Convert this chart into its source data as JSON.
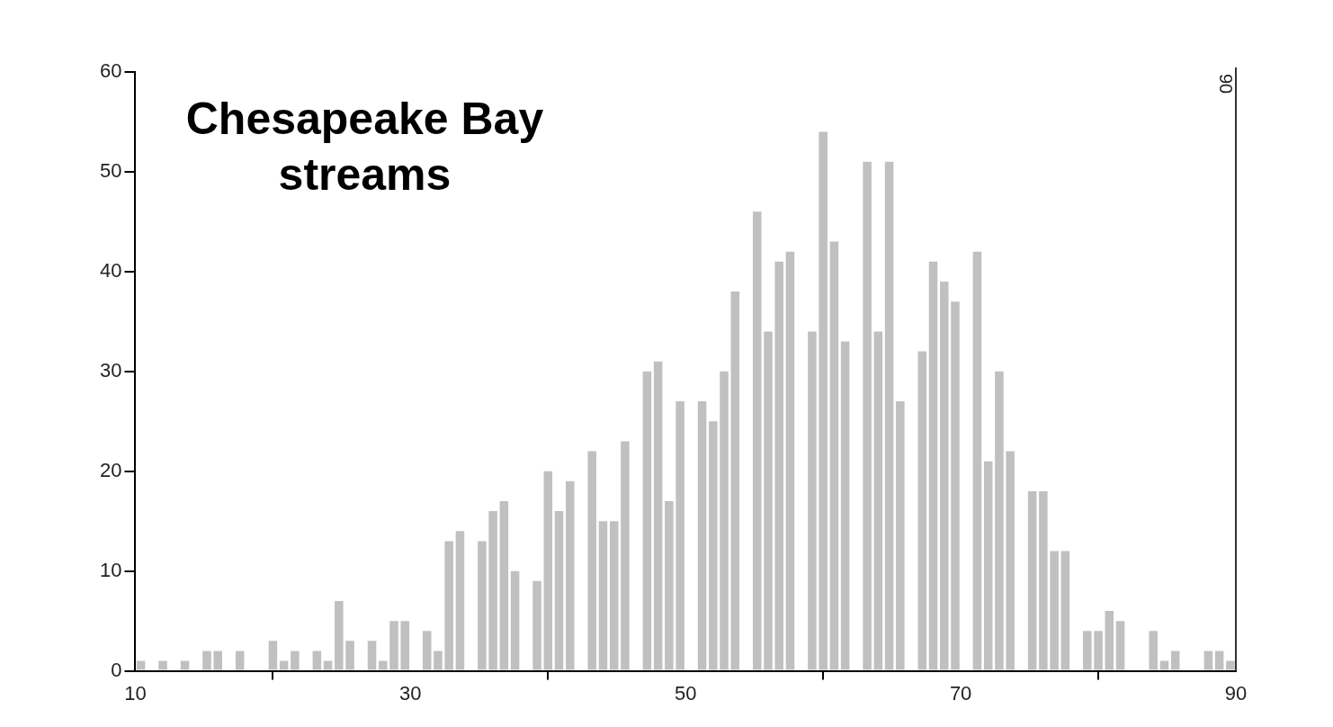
{
  "chart_data": {
    "type": "histogram",
    "title": "Chesapeake Bay streams",
    "bins": [
      10,
      10.8,
      11.6,
      12.4,
      13.2,
      14,
      14.8,
      15.6,
      16.4,
      17.2,
      18,
      18.8,
      19.6,
      20.4,
      21.2,
      22,
      22.8,
      23.6,
      24.4,
      25.2,
      26,
      26.8,
      27.6,
      28.4,
      29.2,
      30,
      30.8,
      31.6,
      32.4,
      33.2,
      34,
      34.8,
      35.6,
      36.4,
      37.2,
      38,
      38.8,
      39.6,
      40.4,
      41.2,
      42,
      42.8,
      43.6,
      44.4,
      45.2,
      46,
      46.8,
      47.6,
      48.4,
      49.2,
      50,
      50.8,
      51.6,
      52.4,
      53.2,
      54,
      54.8,
      55.6,
      56.4,
      57.2,
      58,
      58.8,
      59.6,
      60.4,
      61.2,
      62,
      62.8,
      63.6,
      64.4,
      65.2,
      66,
      66.8,
      67.6,
      68.4,
      69.2,
      70,
      70.8,
      71.6,
      72.4,
      73.2,
      74,
      74.8,
      75.6,
      76.4,
      77.2,
      78,
      78.8,
      79.6,
      80.4,
      81.2,
      82,
      82.8,
      83.6,
      84.4,
      85.2,
      86,
      86.8,
      87.6,
      88.4,
      89.2,
      90
    ],
    "values": [
      1,
      0,
      1,
      0,
      1,
      0,
      2,
      2,
      0,
      2,
      0,
      0,
      3,
      1,
      2,
      0,
      2,
      1,
      7,
      3,
      0,
      3,
      1,
      5,
      5,
      0,
      4,
      2,
      13,
      14,
      0,
      13,
      16,
      17,
      10,
      0,
      9,
      20,
      16,
      19,
      0,
      22,
      15,
      15,
      23,
      0,
      30,
      31,
      17,
      27,
      0,
      27,
      25,
      30,
      38,
      0,
      46,
      34,
      41,
      42,
      0,
      34,
      54,
      43,
      33,
      0,
      51,
      34,
      51,
      27,
      0,
      32,
      41,
      39,
      37,
      0,
      42,
      21,
      30,
      22,
      0,
      18,
      18,
      12,
      12,
      0,
      4,
      4,
      6,
      5,
      0,
      0,
      4,
      1,
      2,
      0,
      0,
      2,
      2,
      1
    ],
    "color": "#c0c0c0",
    "xlim": [
      10,
      90
    ],
    "xticks": [
      10,
      30,
      50,
      70,
      90
    ],
    "ylim": [
      0,
      60
    ],
    "yticks": [
      0,
      10,
      20,
      30,
      40,
      50,
      60
    ],
    "grid": false,
    "legend": false,
    "ref_lines": [
      {
        "axis": "x",
        "value": 90,
        "label": "90"
      }
    ]
  }
}
